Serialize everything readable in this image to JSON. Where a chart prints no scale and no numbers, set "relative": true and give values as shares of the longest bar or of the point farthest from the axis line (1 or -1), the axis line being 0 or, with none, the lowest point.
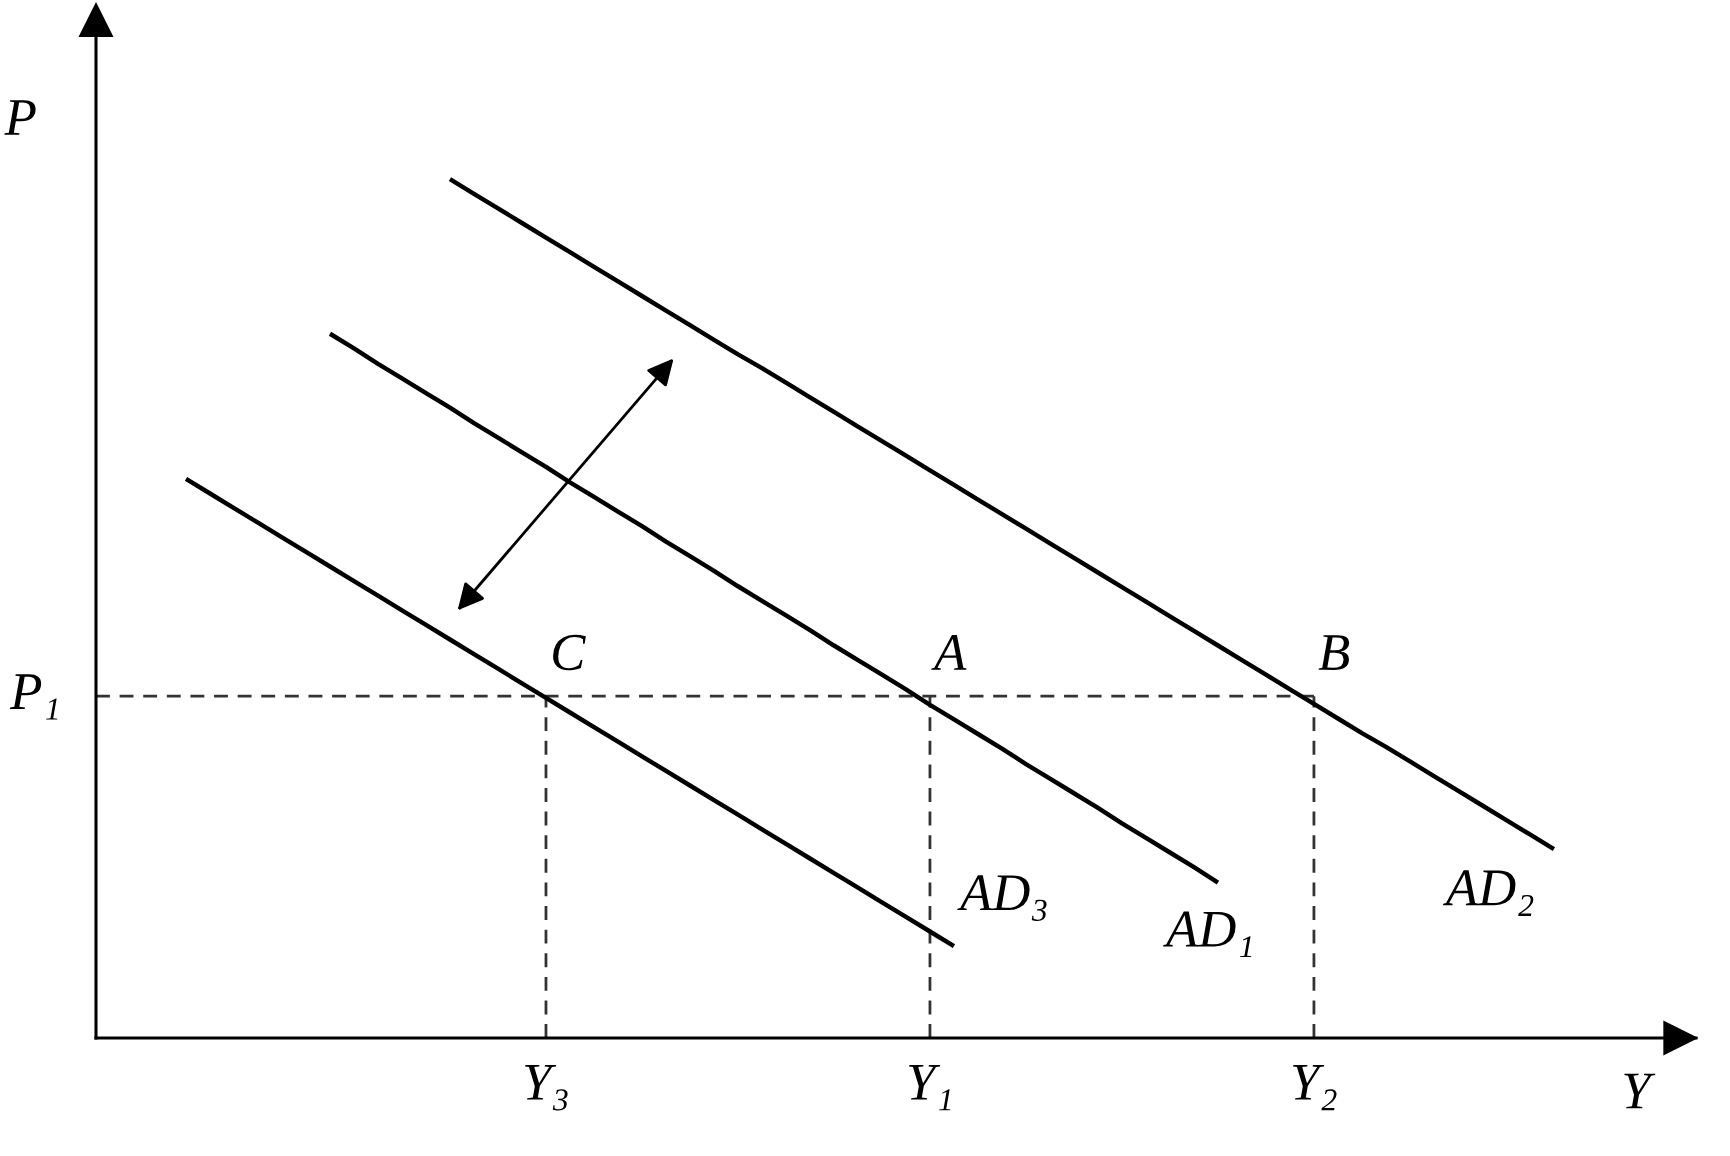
{
  "chart_data": {
    "type": "line",
    "relative": true,
    "xlabel": "Y",
    "ylabel": "P",
    "line_style": "solid",
    "categories": [
      null,
      null,
      null,
      null,
      null,
      null,
      null,
      null,
      null,
      null,
      null,
      null,
      null,
      null,
      null,
      "Y₃",
      null,
      null,
      null,
      null,
      null,
      null,
      null,
      null,
      null,
      null,
      null,
      null,
      null,
      null,
      null,
      "Y₁",
      null,
      null,
      null,
      null,
      null,
      null,
      null,
      null,
      null,
      null,
      null,
      null,
      null,
      null,
      null,
      "Y₂",
      null,
      null,
      null,
      null,
      null,
      null,
      null,
      null,
      null,
      null
    ],
    "series": [
      {
        "name": "AD₃",
        "color": "#000000",
        "values": [
          0.651,
          0.634,
          0.617,
          0.6,
          0.583,
          0.566,
          0.549,
          0.532,
          0.515,
          0.498,
          0.481,
          0.464,
          0.447,
          0.43,
          0.413,
          0.396,
          0.379,
          0.362,
          0.345,
          0.328,
          0.311,
          0.294,
          0.277,
          0.26,
          0.243,
          0.226,
          0.209,
          0.192,
          0.175,
          0.158,
          0.141,
          0.124,
          0.107,
          null,
          null,
          null,
          null,
          null,
          null,
          null,
          null,
          null,
          null,
          null,
          null,
          null,
          null,
          null,
          null,
          null,
          null,
          null,
          null,
          null,
          null,
          null,
          null,
          null
        ]
      },
      {
        "name": "AD₁",
        "color": "#000000",
        "values": [
          null,
          null,
          null,
          null,
          null,
          null,
          0.82,
          0.803,
          0.785,
          0.768,
          0.751,
          0.734,
          0.716,
          0.699,
          0.682,
          0.665,
          0.647,
          0.63,
          0.613,
          0.596,
          0.578,
          0.561,
          0.544,
          0.526,
          0.509,
          0.492,
          0.475,
          0.457,
          0.44,
          0.423,
          0.406,
          0.388,
          0.371,
          0.354,
          0.337,
          0.319,
          0.302,
          0.285,
          0.268,
          0.25,
          0.233,
          0.216,
          0.199,
          0.181,
          null,
          null,
          null,
          null,
          null,
          null,
          null,
          null,
          null,
          null,
          null,
          null,
          null,
          null
        ]
      },
      {
        "name": "AD₂",
        "color": "#000000",
        "values": [
          null,
          null,
          null,
          null,
          null,
          null,
          null,
          null,
          null,
          null,
          null,
          1.0,
          0.983,
          0.966,
          0.949,
          0.932,
          0.915,
          0.898,
          0.881,
          0.864,
          0.847,
          0.83,
          0.813,
          0.796,
          0.78,
          0.763,
          0.746,
          0.729,
          0.712,
          0.695,
          0.678,
          0.661,
          0.644,
          0.627,
          0.61,
          0.593,
          0.576,
          0.559,
          0.542,
          0.525,
          0.508,
          0.491,
          0.474,
          0.457,
          0.44,
          0.423,
          0.406,
          0.389,
          0.372,
          0.355,
          0.339,
          0.322,
          0.305,
          0.288,
          0.271,
          0.254,
          0.237,
          0.22
        ]
      }
    ],
    "ref_lines": [
      {
        "axis": "y",
        "value": 0.398,
        "label": "P₁",
        "color": "#333333",
        "line_style": "dashed"
      },
      {
        "axis": "x",
        "value": "Y₃",
        "color": "#333333",
        "line_style": "dashed"
      },
      {
        "axis": "x",
        "value": "Y₁",
        "color": "#333333",
        "line_style": "dashed"
      },
      {
        "axis": "x",
        "value": "Y₂",
        "color": "#333333",
        "line_style": "dashed"
      }
    ],
    "annotations": [
      {
        "text": "C",
        "x": "Y₃",
        "y": 0.398
      },
      {
        "text": "A",
        "x": "Y₁",
        "y": 0.398
      },
      {
        "text": "B",
        "x": "Y₂",
        "y": 0.398
      }
    ]
  }
}
